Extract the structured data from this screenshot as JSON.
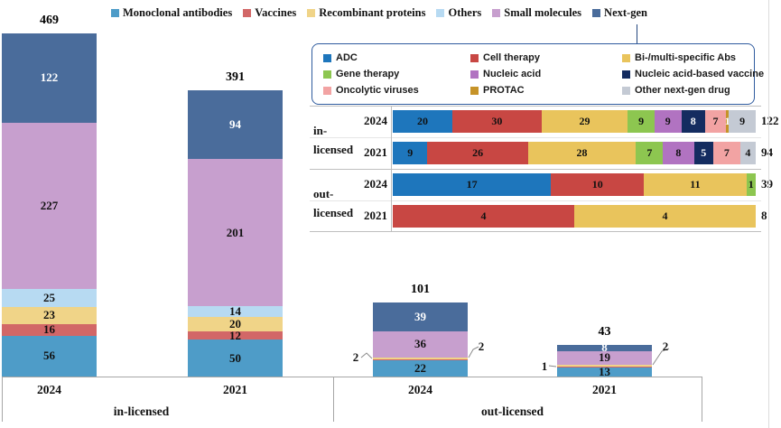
{
  "colors": {
    "modalities": {
      "Monoclonal antibodies": "#4E9CC8",
      "Vaccines": "#D26767",
      "Recombinant proteins": "#F0D488",
      "Others": "#B7DAF2",
      "Small molecules": "#C79FCE",
      "Next-gen": "#4A6C9B"
    },
    "nextgen_types": {
      "ADC": "#1E76BC",
      "Cell therapy": "#C84743",
      "Bi-/multi-specific Abs": "#E9C45C",
      "Gene therapy": "#8DC650",
      "Nucleic acid": "#B173C1",
      "Nucleic acid-based vaccine": "#142C60",
      "Oncolytic viruses": "#F2A3A3",
      "PROTAC": "#C69328",
      "Other next-gen drug": "#C4CAD4"
    },
    "axis_line": "#A6A6A6",
    "grid_line": "#BFBFBF",
    "grid_line_light": "#E6E6E6",
    "inset_border": "#2F5B9E",
    "leader_line": "#8A8A8A",
    "label_dark": "#111111",
    "label_white": "#FFFFFF"
  },
  "top_legend": [
    "Monoclonal antibodies",
    "Vaccines",
    "Recombinant proteins",
    "Others",
    "Small molecules",
    "Next-gen"
  ],
  "inset_legend": [
    "ADC",
    "Cell therapy",
    "Bi-/multi-specific Abs",
    "Gene therapy",
    "Nucleic acid",
    "Nucleic acid-based vaccine",
    "Oncolytic viruses",
    "PROTAC",
    "Other next-gen drug"
  ],
  "axis": {
    "groups": [
      "in-licensed",
      "out-licensed"
    ],
    "years": [
      "2024",
      "2021",
      "2024",
      "2021"
    ]
  },
  "chart_data": [
    {
      "type": "bar",
      "subtype": "vertical-stacked",
      "xlabel": "",
      "ylabel": "",
      "legend_position": "top",
      "grid": false,
      "stack_order_bottom_to_top": [
        "Monoclonal antibodies",
        "Vaccines",
        "Recombinant proteins",
        "Others",
        "Small molecules",
        "Next-gen"
      ],
      "bars": [
        {
          "group": "in-licensed",
          "year": "2024",
          "total": 469,
          "segments": {
            "Monoclonal antibodies": 56,
            "Vaccines": 16,
            "Recombinant proteins": 23,
            "Others": 25,
            "Small molecules": 227,
            "Next-gen": 122
          }
        },
        {
          "group": "in-licensed",
          "year": "2021",
          "total": 391,
          "segments": {
            "Monoclonal antibodies": 50,
            "Vaccines": 12,
            "Recombinant proteins": 20,
            "Others": 14,
            "Small molecules": 201,
            "Next-gen": 94
          }
        },
        {
          "group": "out-licensed",
          "year": "2024",
          "total": 101,
          "segments": {
            "Monoclonal antibodies": 22,
            "Vaccines": 2,
            "Recombinant proteins": 2,
            "Others": 0,
            "Small molecules": 36,
            "Next-gen": 39
          }
        },
        {
          "group": "out-licensed",
          "year": "2021",
          "total": 43,
          "segments": {
            "Monoclonal antibodies": 13,
            "Vaccines": 1,
            "Recombinant proteins": 2,
            "Others": 0,
            "Small molecules": 19,
            "Next-gen": 8
          }
        }
      ],
      "callout_labels": [
        "2",
        "2",
        "1",
        "2"
      ]
    },
    {
      "type": "bar",
      "subtype": "horizontal-stacked-100pct",
      "note": "inset breakdown of Next-gen segment",
      "rows": [
        {
          "group": "in-licensed",
          "year": "2024",
          "total": 122,
          "segments": [
            [
              "ADC",
              20
            ],
            [
              "Cell therapy",
              30
            ],
            [
              "Bi-/multi-specific Abs",
              29
            ],
            [
              "Gene therapy",
              9
            ],
            [
              "Nucleic acid",
              9
            ],
            [
              "Nucleic acid-based vaccine",
              8
            ],
            [
              "Oncolytic viruses",
              7
            ],
            [
              "PROTAC",
              1
            ],
            [
              "Other next-gen drug",
              9
            ]
          ]
        },
        {
          "group": "in-licensed",
          "year": "2021",
          "total": 94,
          "segments": [
            [
              "ADC",
              9
            ],
            [
              "Cell therapy",
              26
            ],
            [
              "Bi-/multi-specific Abs",
              28
            ],
            [
              "Gene therapy",
              7
            ],
            [
              "Nucleic acid",
              8
            ],
            [
              "Nucleic acid-based vaccine",
              5
            ],
            [
              "Oncolytic viruses",
              7
            ],
            [
              "Other next-gen drug",
              4
            ]
          ]
        },
        {
          "group": "out-licensed",
          "year": "2024",
          "total": 39,
          "segments": [
            [
              "ADC",
              17
            ],
            [
              "Cell therapy",
              10
            ],
            [
              "Bi-/multi-specific Abs",
              11
            ],
            [
              "Gene therapy",
              1
            ]
          ]
        },
        {
          "group": "out-licensed",
          "year": "2021",
          "total": 8,
          "segments": [
            [
              "Cell therapy",
              4
            ],
            [
              "Bi-/multi-specific Abs",
              4
            ]
          ]
        }
      ]
    }
  ]
}
